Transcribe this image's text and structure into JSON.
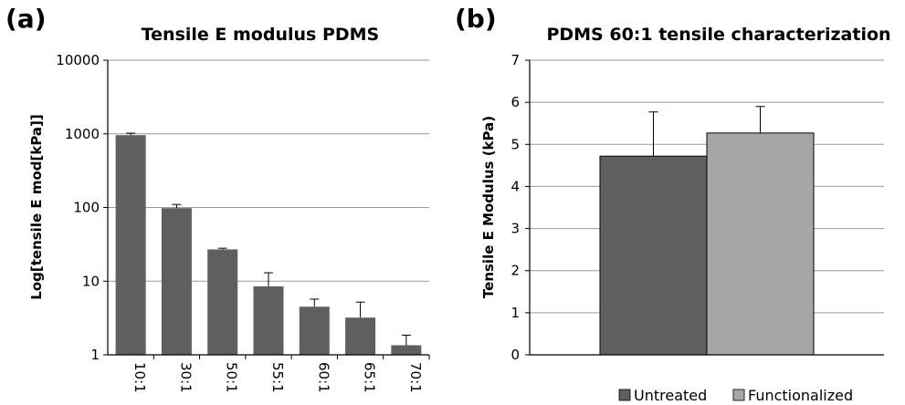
{
  "chart_data": [
    {
      "type": "bar",
      "panel_label": "(a)",
      "title": "Tensile E modulus PDMS",
      "xlabel": "",
      "ylabel": "Log[tensile E mod[kPa]]",
      "yscale": "log",
      "ylim": [
        1,
        10000
      ],
      "yticks": [
        "1",
        "10",
        "100",
        "1000",
        "10000"
      ],
      "grid": true,
      "categories": [
        "10:1",
        "30:1",
        "50:1",
        "55:1",
        "60:1",
        "65:1",
        "70:1"
      ],
      "values": [
        960,
        98,
        27,
        8.5,
        4.5,
        3.2,
        1.35
      ],
      "errors": [
        60,
        12,
        1,
        4.5,
        1.2,
        2.0,
        0.5
      ],
      "bar_color": "#5f5f5f"
    },
    {
      "type": "bar",
      "panel_label": "(b)",
      "title": "PDMS 60:1 tensile characterization",
      "xlabel": "",
      "ylabel": "Tensile E Modulus (kPa)",
      "ylim": [
        0,
        7
      ],
      "yticks": [
        "0",
        "1",
        "2",
        "3",
        "4",
        "5",
        "6",
        "7"
      ],
      "grid": true,
      "legend_position": "bottom",
      "series": [
        {
          "name": "Untreated",
          "value": 4.72,
          "error": 1.05,
          "color": "#5f5f5f"
        },
        {
          "name": "Functionalized",
          "value": 5.27,
          "error": 0.63,
          "color": "#a6a6a6"
        }
      ]
    }
  ]
}
